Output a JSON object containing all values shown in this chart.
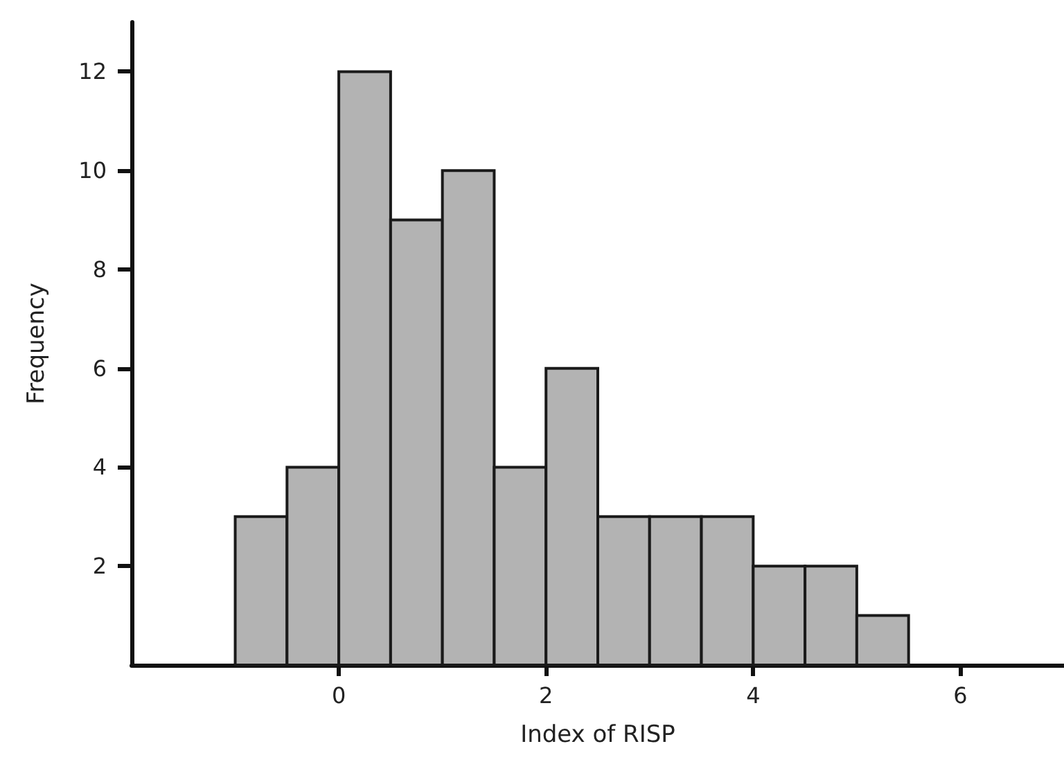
{
  "chart_data": {
    "type": "histogram",
    "xlabel": "Index of RISP",
    "ylabel": "Frequency",
    "bins": [
      -1,
      -0.5,
      0,
      0.5,
      1,
      1.5,
      2,
      2.5,
      3,
      3.5,
      4,
      4.5,
      5,
      5.5
    ],
    "values": [
      3,
      4,
      12,
      9,
      10,
      4,
      6,
      3,
      3,
      3,
      2,
      2,
      1
    ],
    "color": "#b3b3b3",
    "xlim": [
      -2,
      7
    ],
    "xticks": [
      0,
      2,
      4,
      6
    ],
    "ylim": [
      0,
      13
    ],
    "yticks": [
      2,
      4,
      6,
      8,
      10,
      12
    ]
  }
}
